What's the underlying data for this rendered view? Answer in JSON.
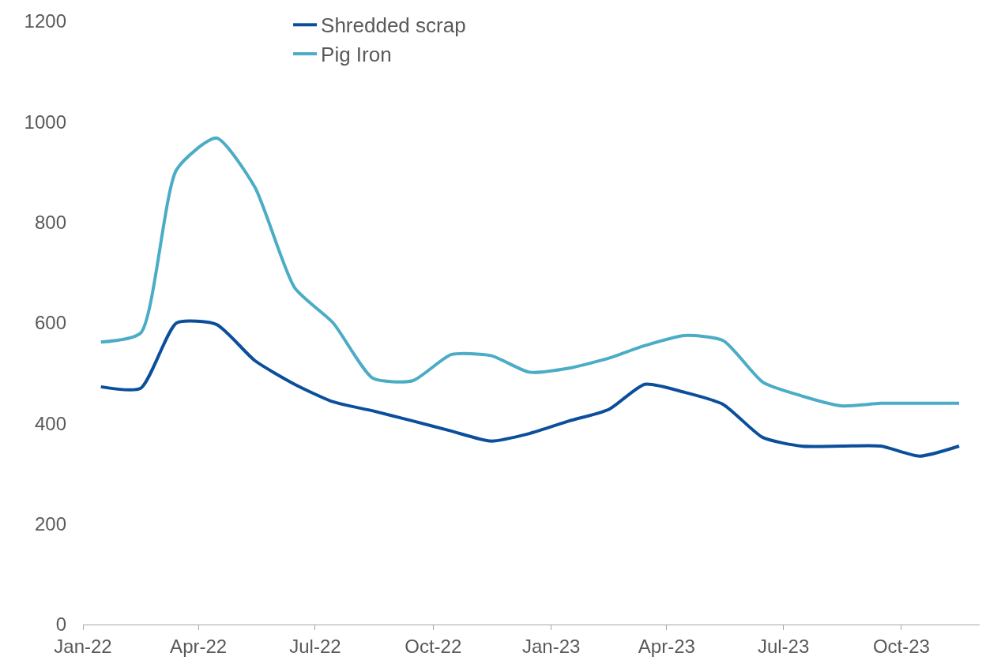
{
  "chart_data": {
    "type": "line",
    "x": [
      "2022-01-15",
      "2022-02-15",
      "2022-03-15",
      "2022-04-15",
      "2022-05-15",
      "2022-06-15",
      "2022-07-15",
      "2022-08-15",
      "2022-09-15",
      "2022-10-15",
      "2022-11-15",
      "2022-12-15",
      "2023-01-15",
      "2023-02-15",
      "2023-03-15",
      "2023-04-15",
      "2023-05-15",
      "2023-06-15",
      "2023-07-15",
      "2023-08-15",
      "2023-09-15",
      "2023-10-15",
      "2023-11-15"
    ],
    "series": [
      {
        "name": "Shredded scrap",
        "color": "#0b4f9c",
        "values": [
          473,
          470,
          600,
          597,
          525,
          478,
          443,
          425,
          405,
          385,
          365,
          380,
          405,
          428,
          478,
          462,
          438,
          372,
          355,
          355,
          355,
          335,
          355
        ]
      },
      {
        "name": "Pig Iron",
        "color": "#4bacc6",
        "values": [
          562,
          580,
          905,
          968,
          870,
          670,
          600,
          490,
          485,
          537,
          535,
          502,
          510,
          530,
          555,
          575,
          565,
          482,
          455,
          435,
          440,
          440,
          440
        ]
      }
    ],
    "xlim": [
      "2022-01-01",
      "2023-12-01"
    ],
    "xticks": [
      {
        "value": "2022-01-01",
        "label": "Jan-22"
      },
      {
        "value": "2022-04-01",
        "label": "Apr-22"
      },
      {
        "value": "2022-07-01",
        "label": "Jul-22"
      },
      {
        "value": "2022-10-01",
        "label": "Oct-22"
      },
      {
        "value": "2023-01-01",
        "label": "Jan-23"
      },
      {
        "value": "2023-04-01",
        "label": "Apr-23"
      },
      {
        "value": "2023-07-01",
        "label": "Jul-23"
      },
      {
        "value": "2023-10-01",
        "label": "Oct-23"
      }
    ],
    "ylim": [
      0,
      1200
    ],
    "yticks": [
      0,
      200,
      400,
      600,
      800,
      1000,
      1200
    ],
    "legend": "top",
    "marker": "none",
    "line_style": "solid"
  }
}
